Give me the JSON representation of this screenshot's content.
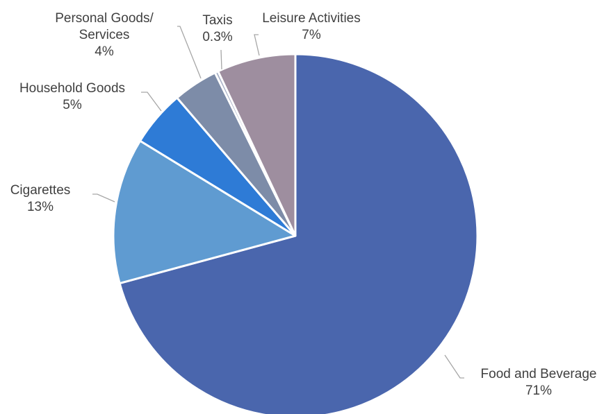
{
  "chart_data": {
    "type": "pie",
    "title": "",
    "slices": [
      {
        "label": "Food and Beverage",
        "value": 71,
        "value_label": "71%",
        "color": "#4a66ad"
      },
      {
        "label": "Cigarettes",
        "value": 13,
        "value_label": "13%",
        "color": "#5f9bd1"
      },
      {
        "label": "Household Goods",
        "value": 5,
        "value_label": "5%",
        "color": "#2e7bd6"
      },
      {
        "label": "Personal Goods/ Services",
        "label_lines": [
          "Personal Goods/",
          "Services"
        ],
        "value": 4,
        "value_label": "4%",
        "color": "#7d8ca8"
      },
      {
        "label": "Taxis",
        "value": 0.3,
        "value_label": "0.3%",
        "color": "#a7b0c6"
      },
      {
        "label": "Leisure Activities",
        "value": 7,
        "value_label": "7%",
        "color": "#9e8e9f"
      }
    ],
    "start_angle": "top (12 o'clock)",
    "direction": "clockwise",
    "legend": "none",
    "slice_border_color": "#ffffff"
  }
}
